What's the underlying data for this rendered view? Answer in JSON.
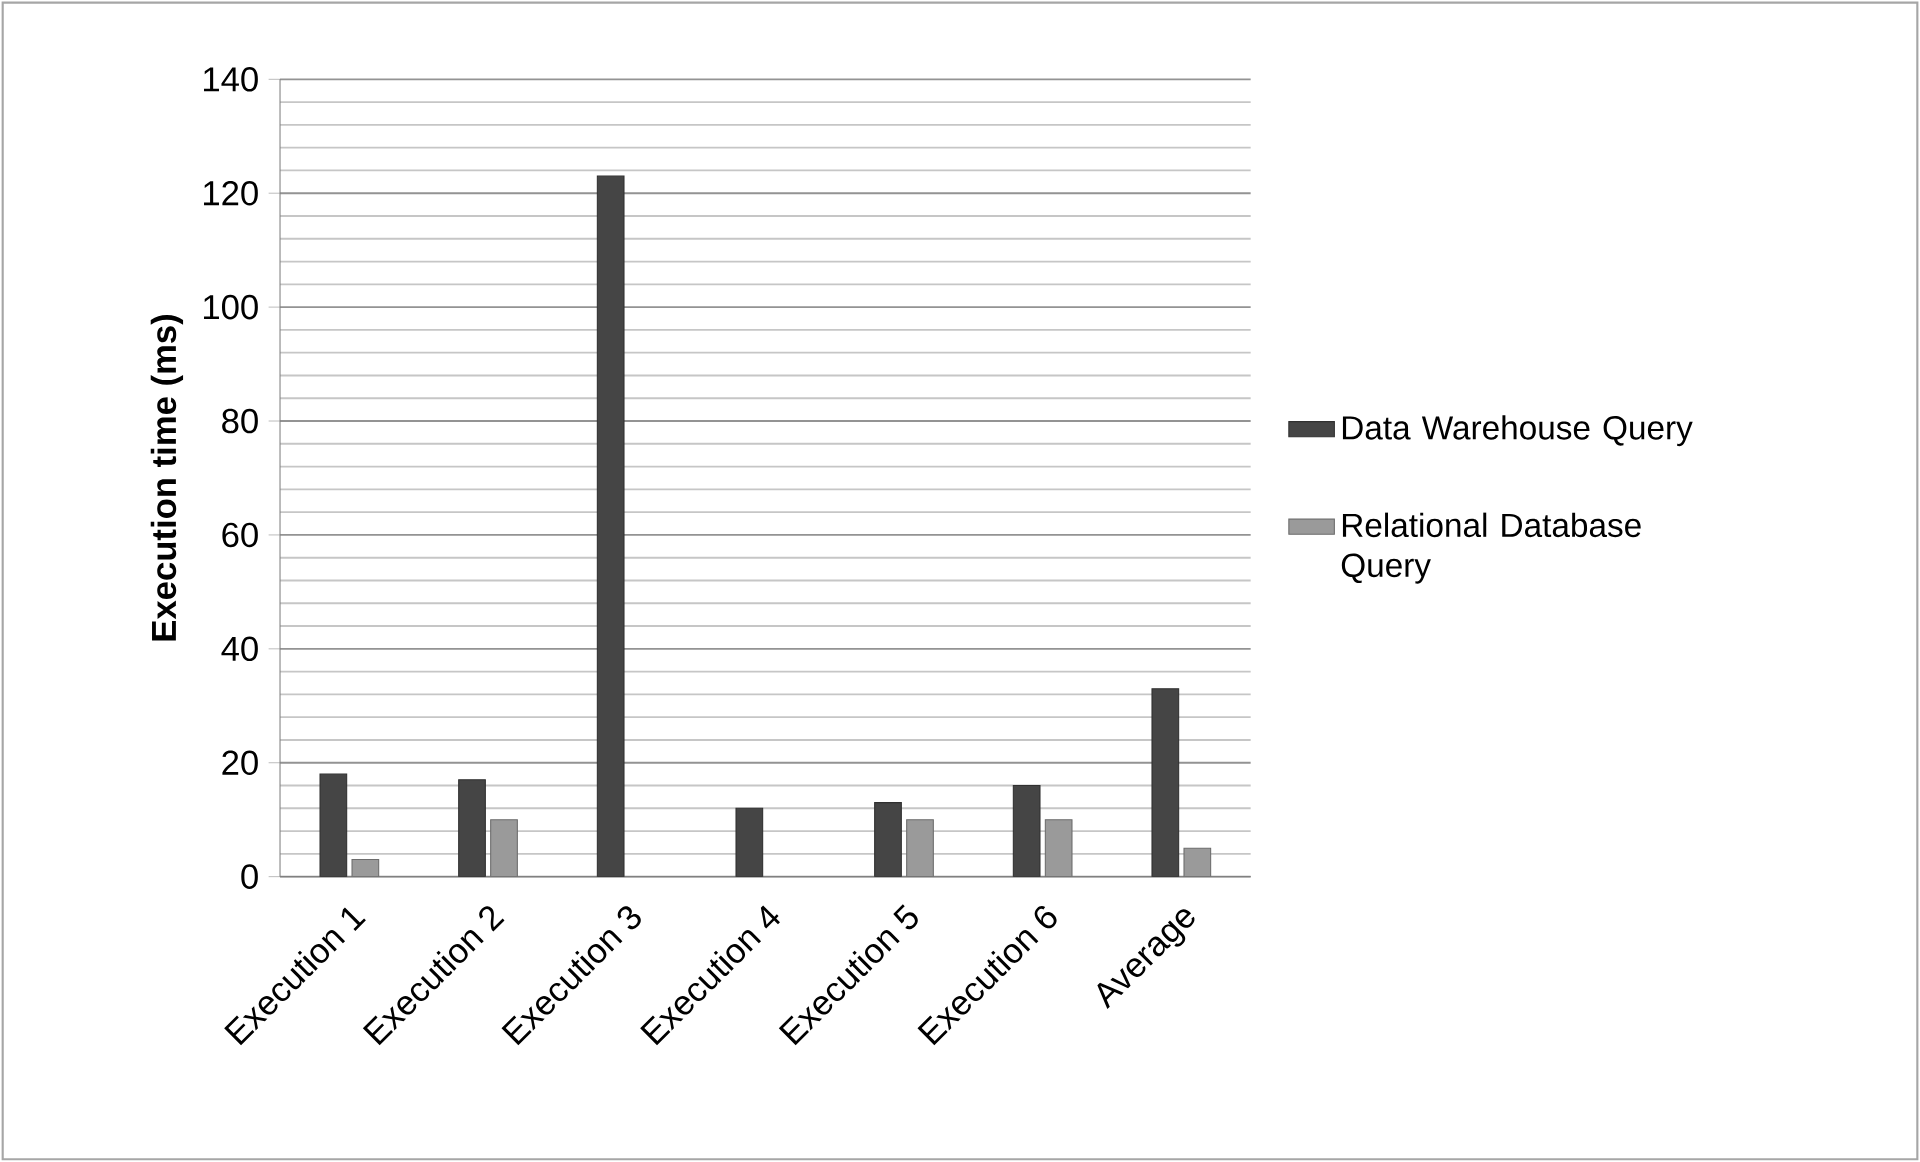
{
  "chart_data": {
    "type": "bar",
    "ylabel": "Execution time (ms)",
    "categories": [
      "Execution 1",
      "Execution 2",
      "Execution 3",
      "Execution 4",
      "Execution 5",
      "Execution 6",
      "Average"
    ],
    "series": [
      {
        "name": "Data Warehouse Query",
        "color": "#454545",
        "values": [
          18,
          17,
          123,
          12,
          13,
          16,
          33
        ]
      },
      {
        "name": "Relational Database Query",
        "color": "#9a9a9a",
        "values": [
          3,
          10,
          null,
          null,
          10,
          10,
          5
        ]
      }
    ],
    "ylim": [
      0,
      140
    ],
    "yticks": [
      0,
      20,
      40,
      60,
      80,
      100,
      120,
      140
    ],
    "grid": true,
    "legend": "right"
  }
}
